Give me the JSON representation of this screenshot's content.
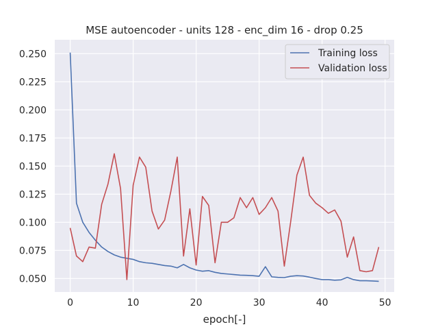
{
  "chart_data": {
    "type": "line",
    "title": "MSE autoencoder - units 128 - enc_dim 16 - drop 0.25",
    "xlabel": "epoch[-]",
    "ylabel": "",
    "xlim": [
      -2.45,
      51.45
    ],
    "ylim": [
      0.038,
      0.2624
    ],
    "xticks": [
      0,
      10,
      20,
      30,
      40,
      50
    ],
    "yticks": [
      0.05,
      0.075,
      0.1,
      0.125,
      0.15,
      0.175,
      0.2,
      0.225,
      0.25
    ],
    "ytick_labels": [
      "0.050",
      "0.075",
      "0.100",
      "0.125",
      "0.150",
      "0.175",
      "0.200",
      "0.225",
      "0.250"
    ],
    "grid": true,
    "legend_position": "top-right",
    "background": "#eaeaf2",
    "x": [
      0,
      1,
      2,
      3,
      4,
      5,
      6,
      7,
      8,
      9,
      10,
      11,
      12,
      13,
      14,
      15,
      16,
      17,
      18,
      19,
      20,
      21,
      22,
      23,
      24,
      25,
      26,
      27,
      28,
      29,
      30,
      31,
      32,
      33,
      34,
      35,
      36,
      37,
      38,
      39,
      40,
      41,
      42,
      43,
      44,
      45,
      46,
      47,
      48,
      49
    ],
    "series": [
      {
        "name": "Training loss",
        "color": "#4c72b0",
        "values": [
          0.251,
          0.117,
          0.1,
          0.091,
          0.084,
          0.078,
          0.074,
          0.071,
          0.069,
          0.068,
          0.067,
          0.065,
          0.064,
          0.0635,
          0.0625,
          0.0615,
          0.061,
          0.0595,
          0.0625,
          0.0595,
          0.0575,
          0.0565,
          0.057,
          0.0555,
          0.0545,
          0.054,
          0.0535,
          0.053,
          0.0528,
          0.0525,
          0.052,
          0.0605,
          0.0515,
          0.051,
          0.0508,
          0.052,
          0.0525,
          0.0522,
          0.0512,
          0.05,
          0.049,
          0.049,
          0.0485,
          0.0488,
          0.051,
          0.049,
          0.048,
          0.048,
          0.0478,
          0.0475
        ]
      },
      {
        "name": "Validation loss",
        "color": "#c44e52",
        "values": [
          0.095,
          0.07,
          0.065,
          0.078,
          0.077,
          0.116,
          0.134,
          0.161,
          0.13,
          0.049,
          0.133,
          0.158,
          0.149,
          0.11,
          0.094,
          0.102,
          0.128,
          0.158,
          0.07,
          0.112,
          0.062,
          0.123,
          0.115,
          0.064,
          0.1,
          0.1,
          0.104,
          0.122,
          0.113,
          0.122,
          0.107,
          0.113,
          0.122,
          0.11,
          0.061,
          0.1,
          0.142,
          0.158,
          0.124,
          0.117,
          0.113,
          0.108,
          0.111,
          0.101,
          0.069,
          0.087,
          0.057,
          0.056,
          0.057,
          0.078
        ]
      }
    ]
  }
}
